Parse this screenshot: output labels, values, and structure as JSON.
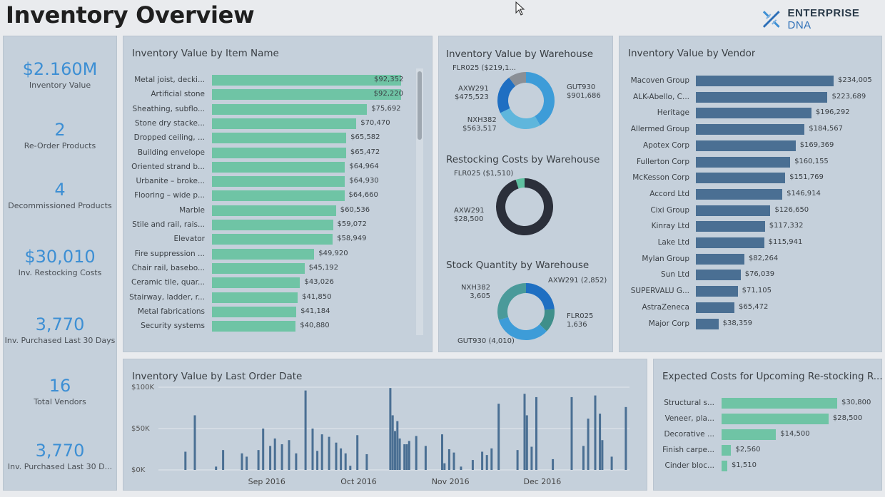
{
  "header": {
    "title": "Inventory Overview",
    "logo_main": "ENTERPRISE",
    "logo_accent": "DNA"
  },
  "kpis": [
    {
      "value": "$2.160M",
      "label": "Inventory Value"
    },
    {
      "value": "2",
      "label": "Re-Order Products"
    },
    {
      "value": "4",
      "label": "Decommissioned Products"
    },
    {
      "value": "$30,010",
      "label": "Inv. Restocking Costs"
    },
    {
      "value": "3,770",
      "label": "Inv. Purchased Last 30 Days"
    },
    {
      "value": "16",
      "label": "Total Vendors"
    },
    {
      "value": "3,770",
      "label": "Inv. Purchased Last 30 D..."
    }
  ],
  "colors": {
    "accent": "#3d8fd4",
    "green_bar": "#6fc4a5",
    "vendor_bar": "#4a6f93",
    "date_bar": "#4a6f93",
    "panel_bg": "#c5d0db",
    "page_bg": "#e9ebee",
    "donut_dark": "#2b2f3a"
  },
  "item_chart": {
    "title": "Inventory Value by Item Name",
    "chart_data": {
      "type": "bar",
      "orientation": "horizontal",
      "categories": [
        "Metal joist, decki...",
        "Artificial stone",
        "Sheathing, subflo...",
        "Stone dry stacke...",
        "Dropped ceiling, ...",
        "Building envelope",
        "Oriented strand b...",
        "Urbanite – broke...",
        "Flooring – wide p...",
        "Marble",
        "Stile and rail, rais...",
        "Elevator",
        "Fire suppression ...",
        "Chair rail, basebo...",
        "Ceramic tile, quar...",
        "Stairway, ladder, r...",
        "Metal fabrications",
        "Security systems"
      ],
      "values": [
        92352,
        92220,
        75692,
        70470,
        65582,
        65472,
        64964,
        64930,
        64660,
        60536,
        59072,
        58949,
        49920,
        45192,
        43026,
        41850,
        41184,
        40880
      ],
      "labels": [
        "$92,352",
        "$92,220",
        "$75,692",
        "$70,470",
        "$65,582",
        "$65,472",
        "$64,964",
        "$64,930",
        "$64,660",
        "$60,536",
        "$59,072",
        "$58,949",
        "$49,920",
        "$45,192",
        "$43,026",
        "$41,850",
        "$41,184",
        "$40,880"
      ]
    }
  },
  "warehouse_value": {
    "title": "Inventory Value by Warehouse",
    "chart_data": {
      "type": "pie",
      "style": "donut",
      "categories": [
        "GUT930",
        "NXH382",
        "AXW291",
        "FLR025"
      ],
      "values": [
        901686,
        563517,
        475523,
        219100
      ],
      "colors": [
        "#3d9cd8",
        "#5fb6dc",
        "#1f6fc2",
        "#8a8f96"
      ]
    },
    "labels": [
      {
        "text": "FLR025 ($219,1..."
      },
      {
        "text": "AXW291",
        "sub": "$475,523"
      },
      {
        "text": "NXH382",
        "sub": "$563,517"
      },
      {
        "text": "GUT930",
        "sub": "$901,686"
      }
    ]
  },
  "restocking": {
    "title": "Restocking Costs by Warehouse",
    "chart_data": {
      "type": "pie",
      "style": "donut",
      "categories": [
        "AXW291",
        "FLR025"
      ],
      "values": [
        28500,
        1510
      ],
      "colors": [
        "#2b2f3a",
        "#5fc0a0"
      ]
    },
    "labels": [
      {
        "text": "FLR025 ($1,510)"
      },
      {
        "text": "AXW291",
        "sub": "$28,500"
      }
    ]
  },
  "stock_qty": {
    "title": "Stock Quantity by Warehouse",
    "chart_data": {
      "type": "pie",
      "style": "donut",
      "categories": [
        "AXW291",
        "FLR025",
        "GUT930",
        "NXH382"
      ],
      "values": [
        2852,
        1636,
        4010,
        3605
      ],
      "colors": [
        "#1f6fc2",
        "#3f8f8a",
        "#3d9cd8",
        "#4a9a9a"
      ]
    },
    "labels": [
      {
        "text": "AXW291 (2,852)"
      },
      {
        "text": "FLR025",
        "sub": "1,636"
      },
      {
        "text": "GUT930 (4,010)"
      },
      {
        "text": "NXH382",
        "sub": "3,605"
      }
    ]
  },
  "vendor_chart": {
    "title": "Inventory Value by Vendor",
    "chart_data": {
      "type": "bar",
      "orientation": "horizontal",
      "categories": [
        "Macoven Group",
        "ALK-Abello, C...",
        "Heritage",
        "Allermed Group",
        "Apotex Corp",
        "Fullerton Corp",
        "McKesson Corp",
        "Accord Ltd",
        "Cixi Group",
        "Kinray Ltd",
        "Lake Ltd",
        "Mylan Group",
        "Sun Ltd",
        "SUPERVALU G...",
        "AstraZeneca",
        "Major Corp"
      ],
      "values": [
        234005,
        223689,
        196292,
        184567,
        169369,
        160155,
        151769,
        146914,
        126650,
        117332,
        115941,
        82264,
        76039,
        71105,
        65472,
        38359
      ],
      "labels": [
        "$234,005",
        "$223,689",
        "$196,292",
        "$184,567",
        "$169,369",
        "$160,155",
        "$151,769",
        "$146,914",
        "$126,650",
        "$117,332",
        "$115,941",
        "$82,264",
        "$76,039",
        "$71,105",
        "$65,472",
        "$38,359"
      ]
    }
  },
  "date_chart": {
    "title": "Inventory Value by Last Order Date",
    "chart_data": {
      "type": "bar",
      "y_ticks": [
        "$100K",
        "$50K",
        "$0K"
      ],
      "ylim": [
        0,
        100000
      ],
      "x_ticks": [
        "Sep 2016",
        "Oct 2016",
        "Nov 2016",
        "Dec 2016"
      ],
      "x_tick_fractions": [
        0.23,
        0.425,
        0.62,
        0.815
      ],
      "x_fraction": [
        0.055,
        0.075,
        0.12,
        0.135,
        0.175,
        0.185,
        0.21,
        0.22,
        0.235,
        0.245,
        0.26,
        0.275,
        0.29,
        0.31,
        0.325,
        0.335,
        0.345,
        0.36,
        0.375,
        0.385,
        0.395,
        0.405,
        0.42,
        0.44,
        0.49,
        0.495,
        0.5,
        0.505,
        0.51,
        0.52,
        0.525,
        0.53,
        0.545,
        0.565,
        0.6,
        0.605,
        0.615,
        0.625,
        0.64,
        0.665,
        0.685,
        0.695,
        0.705,
        0.72,
        0.76,
        0.775,
        0.78,
        0.79,
        0.8,
        0.835,
        0.875,
        0.9,
        0.91,
        0.925,
        0.935,
        0.94,
        0.96,
        0.99
      ],
      "values": [
        22000,
        66000,
        4000,
        24000,
        20000,
        16000,
        24000,
        50000,
        29000,
        38000,
        31000,
        36000,
        20000,
        96000,
        50000,
        23000,
        43000,
        40000,
        33000,
        26000,
        20000,
        5000,
        42000,
        19000,
        99000,
        66000,
        47000,
        59000,
        38000,
        31000,
        31000,
        35000,
        41000,
        29000,
        43000,
        8000,
        25000,
        21000,
        4000,
        12000,
        22000,
        18000,
        26000,
        80000,
        24000,
        92000,
        66000,
        28000,
        88000,
        13000,
        88000,
        29000,
        62000,
        90000,
        68000,
        36000,
        16000,
        76000
      ]
    }
  },
  "restock_chart": {
    "title": "Expected Costs for Upcoming Re-stocking R...",
    "chart_data": {
      "type": "bar",
      "orientation": "horizontal",
      "categories": [
        "Structural s...",
        "Veneer, pla...",
        "Decorative ...",
        "Finish carpe...",
        "Cinder bloc..."
      ],
      "values": [
        30800,
        28500,
        14500,
        2560,
        1510
      ],
      "labels": [
        "$30,800",
        "$28,500",
        "$14,500",
        "$2,560",
        "$1,510"
      ]
    }
  }
}
